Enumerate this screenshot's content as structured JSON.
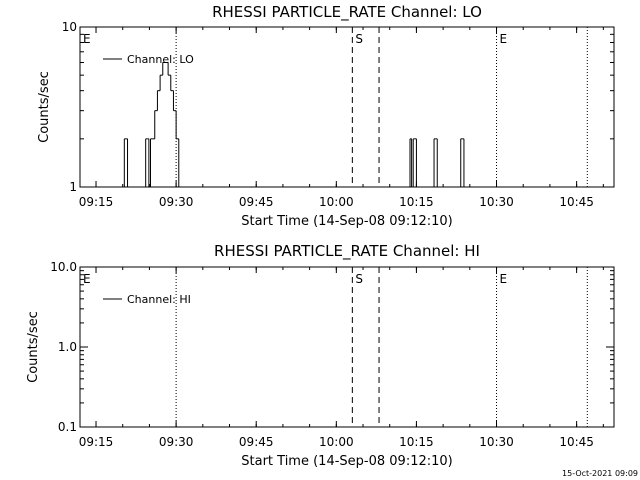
{
  "chart_data": [
    {
      "type": "line",
      "title": "RHESSI PARTICLE_RATE Channel: LO",
      "ylabel": "Counts/sec",
      "xlabel": "Start Time (14-Sep-08 09:12:10)",
      "scale_y": "log",
      "ylim": [
        1,
        10
      ],
      "ytick_labels": [
        "1",
        "10"
      ],
      "xlim": [
        "09:12",
        "10:52"
      ],
      "xtick_labels": [
        "09:15",
        "09:30",
        "09:45",
        "10:00",
        "10:15",
        "10:30",
        "10:45"
      ],
      "legend": {
        "label": "Channel: LO",
        "placement": "top-left"
      },
      "event_markers": [
        {
          "label": "E",
          "time": "09:12",
          "style": "none"
        },
        {
          "label": "",
          "time": "09:30",
          "style": "dotted"
        },
        {
          "label": "S",
          "time": "10:03",
          "style": "dashed"
        },
        {
          "label": "",
          "time": "10:08",
          "style": "dashed"
        },
        {
          "label": "E",
          "time": "10:30",
          "style": "dotted"
        },
        {
          "label": "",
          "time": "10:47",
          "style": "dotted"
        }
      ],
      "series": [
        {
          "name": "Channel: LO",
          "x": [
            "09:20.0",
            "09:20.3",
            "09:20.6",
            "09:20.9",
            "09:24.0",
            "09:24.3",
            "09:24.6",
            "09:24.9",
            "09:25.2",
            "09:25.5",
            "09:26.0",
            "09:26.5",
            "09:27.0",
            "09:27.5",
            "09:28.0",
            "09:28.5",
            "09:29.0",
            "09:29.5",
            "09:30.0",
            "09:30.5",
            "10:13.5",
            "10:13.8",
            "10:14.1",
            "10:14.4",
            "10:14.7",
            "10:15.0",
            "10:18.0",
            "10:18.3",
            "10:18.6",
            "10:18.9",
            "10:23.0",
            "10:23.3",
            "10:23.6",
            "10:23.9"
          ],
          "y": [
            1,
            2,
            2,
            1,
            1,
            2,
            2,
            1,
            2,
            2,
            3,
            4,
            5,
            6,
            6,
            5,
            4,
            3,
            2,
            1,
            1,
            2,
            1,
            2,
            2,
            1,
            1,
            2,
            2,
            1,
            1,
            2,
            2,
            1
          ]
        }
      ]
    },
    {
      "type": "line",
      "title": "RHESSI PARTICLE_RATE Channel: HI",
      "ylabel": "Counts/sec",
      "xlabel": "Start Time (14-Sep-08 09:12:10)",
      "scale_y": "log",
      "ylim": [
        0.1,
        10
      ],
      "ytick_labels": [
        "0.1",
        "1.0",
        "10.0"
      ],
      "xlim": [
        "09:12",
        "10:52"
      ],
      "xtick_labels": [
        "09:15",
        "09:30",
        "09:45",
        "10:00",
        "10:15",
        "10:30",
        "10:45"
      ],
      "legend": {
        "label": "Channel: HI",
        "placement": "top-left"
      },
      "event_markers": [
        {
          "label": "E",
          "time": "09:12",
          "style": "none"
        },
        {
          "label": "",
          "time": "09:30",
          "style": "dotted"
        },
        {
          "label": "S",
          "time": "10:03",
          "style": "dashed"
        },
        {
          "label": "",
          "time": "10:08",
          "style": "dashed"
        },
        {
          "label": "E",
          "time": "10:30",
          "style": "dotted"
        },
        {
          "label": "",
          "time": "10:47",
          "style": "dotted"
        }
      ],
      "series": [
        {
          "name": "Channel: HI",
          "x": [],
          "y": []
        }
      ]
    }
  ],
  "footer": {
    "timestamp": "15-Oct-2021 09:09"
  }
}
